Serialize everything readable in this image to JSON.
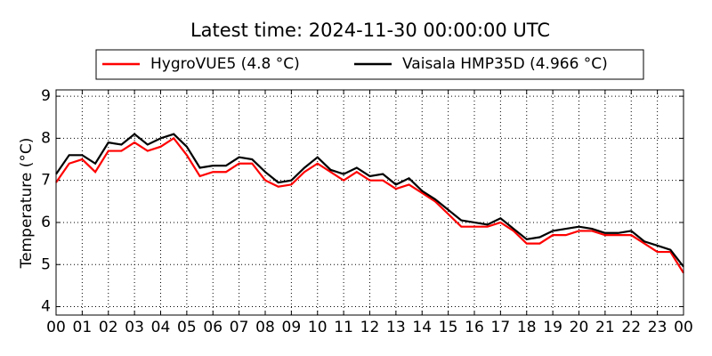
{
  "chart_data": {
    "type": "line",
    "title": "Latest time: 2024-11-30 00:00:00 UTC",
    "y_label": "Temperature (°C)",
    "x": [
      0,
      0.5,
      1,
      1.5,
      2,
      2.5,
      3,
      3.5,
      4,
      4.5,
      5,
      5.5,
      6,
      6.5,
      7,
      7.5,
      8,
      8.5,
      9,
      9.5,
      10,
      10.5,
      11,
      11.5,
      12,
      12.5,
      13,
      13.5,
      14,
      14.5,
      15,
      15.5,
      16,
      16.5,
      17,
      17.5,
      18,
      18.5,
      19,
      19.5,
      20,
      20.5,
      21,
      21.5,
      22,
      22.5,
      23,
      23.5,
      24
    ],
    "series": [
      {
        "name": "HygroVUE5 (4.8 °C)",
        "color": "#ff0000",
        "values": [
          6.95,
          7.4,
          7.5,
          7.2,
          7.7,
          7.7,
          7.9,
          7.7,
          7.8,
          8.0,
          7.6,
          7.1,
          7.2,
          7.2,
          7.4,
          7.4,
          7.0,
          6.85,
          6.9,
          7.2,
          7.4,
          7.2,
          7.0,
          7.2,
          7.0,
          7.0,
          6.8,
          6.9,
          6.7,
          6.5,
          6.2,
          5.9,
          5.9,
          5.9,
          6.0,
          5.8,
          5.5,
          5.5,
          5.7,
          5.7,
          5.8,
          5.8,
          5.7,
          5.7,
          5.7,
          5.5,
          5.3,
          5.3,
          4.8
        ]
      },
      {
        "name": "Vaisala HMP35D (4.966 °C)",
        "color": "#000000",
        "values": [
          7.15,
          7.6,
          7.6,
          7.4,
          7.9,
          7.85,
          8.1,
          7.85,
          8.0,
          8.1,
          7.8,
          7.3,
          7.35,
          7.35,
          7.55,
          7.5,
          7.2,
          6.95,
          7.0,
          7.3,
          7.55,
          7.25,
          7.15,
          7.3,
          7.1,
          7.15,
          6.9,
          7.05,
          6.75,
          6.55,
          6.3,
          6.05,
          6.0,
          5.95,
          6.1,
          5.85,
          5.6,
          5.65,
          5.8,
          5.85,
          5.9,
          5.85,
          5.75,
          5.75,
          5.8,
          5.55,
          5.45,
          5.35,
          4.95
        ]
      }
    ],
    "xlim": [
      0,
      24
    ],
    "xticks": [
      {
        "value": 0,
        "label": "00"
      },
      {
        "value": 1,
        "label": "01"
      },
      {
        "value": 2,
        "label": "02"
      },
      {
        "value": 3,
        "label": "03"
      },
      {
        "value": 4,
        "label": "04"
      },
      {
        "value": 5,
        "label": "05"
      },
      {
        "value": 6,
        "label": "06"
      },
      {
        "value": 7,
        "label": "07"
      },
      {
        "value": 8,
        "label": "08"
      },
      {
        "value": 9,
        "label": "09"
      },
      {
        "value": 10,
        "label": "10"
      },
      {
        "value": 11,
        "label": "11"
      },
      {
        "value": 12,
        "label": "12"
      },
      {
        "value": 13,
        "label": "13"
      },
      {
        "value": 14,
        "label": "14"
      },
      {
        "value": 15,
        "label": "15"
      },
      {
        "value": 16,
        "label": "16"
      },
      {
        "value": 17,
        "label": "17"
      },
      {
        "value": 18,
        "label": "18"
      },
      {
        "value": 19,
        "label": "19"
      },
      {
        "value": 20,
        "label": "20"
      },
      {
        "value": 21,
        "label": "21"
      },
      {
        "value": 22,
        "label": "22"
      },
      {
        "value": 23,
        "label": "23"
      },
      {
        "value": 24,
        "label": "00"
      }
    ],
    "ylim": [
      3.8,
      9.15
    ],
    "yticks": [
      4,
      5,
      6,
      7,
      8,
      9
    ],
    "grid": true,
    "legend": "top"
  }
}
